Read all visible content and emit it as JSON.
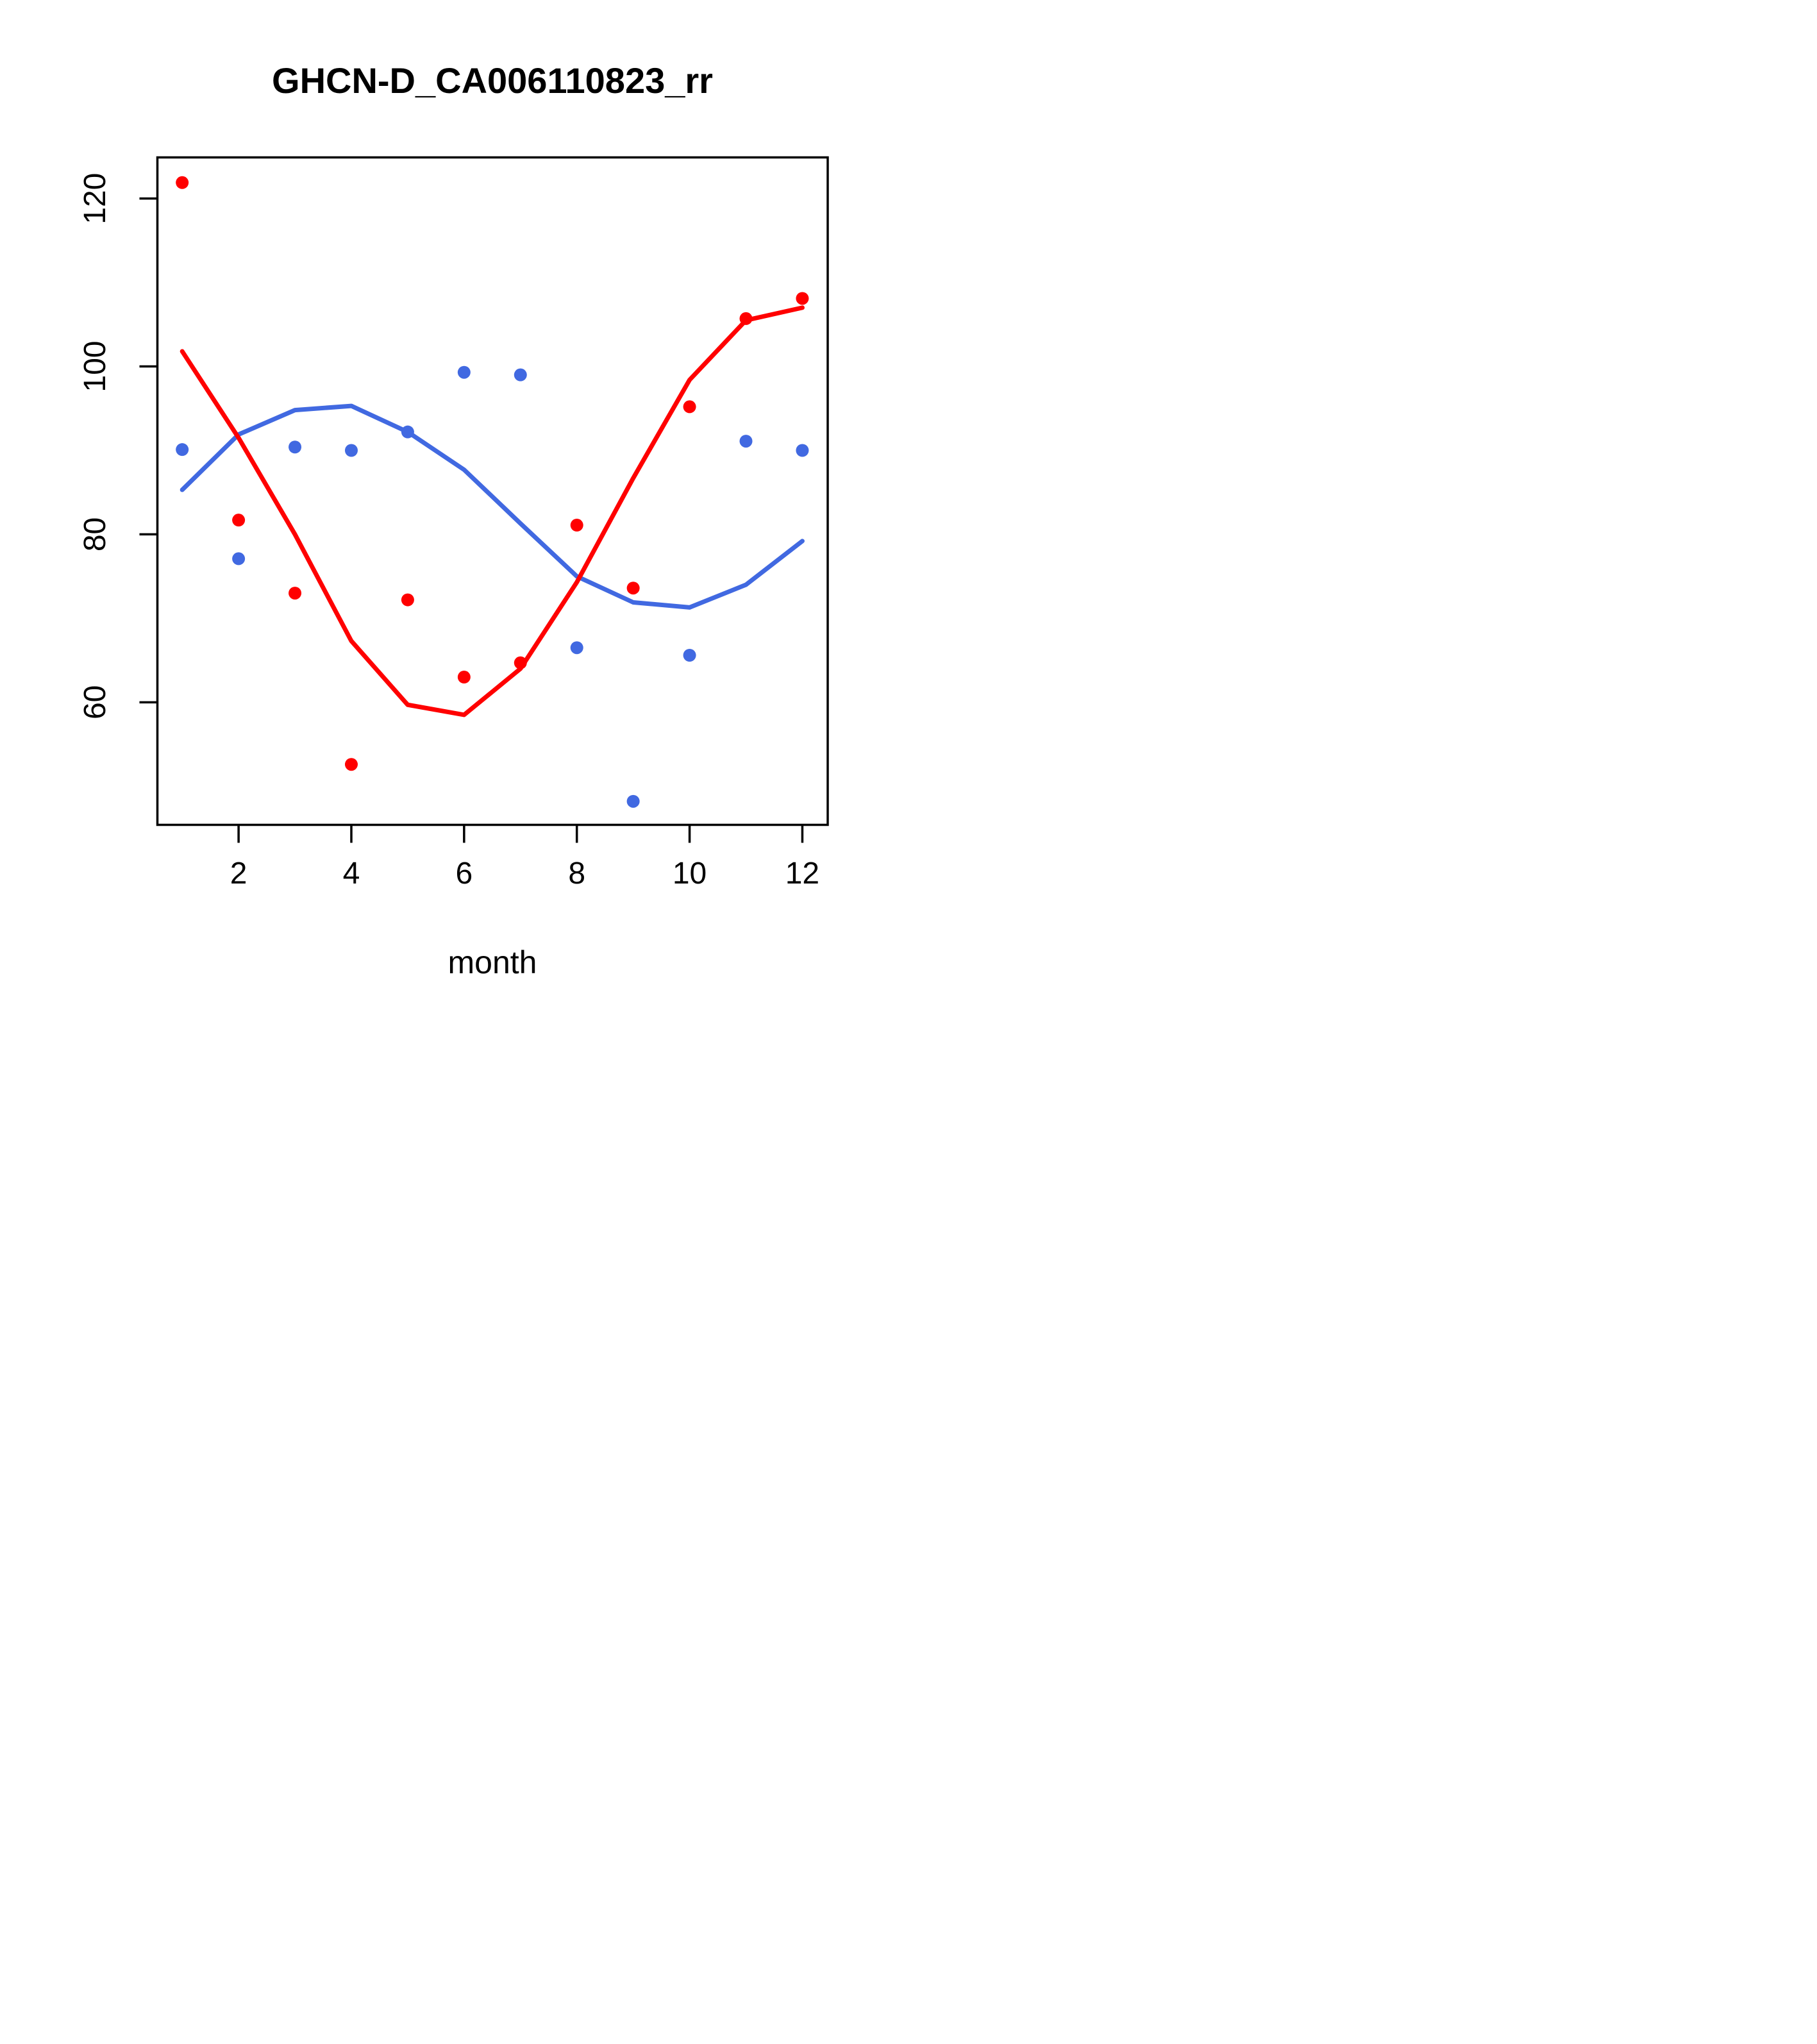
{
  "chart_data": {
    "type": "scatter",
    "title": "GHCN-D_CA006110823_rr",
    "xlabel": "month",
    "ylabel": "",
    "x": [
      1,
      2,
      3,
      4,
      5,
      6,
      7,
      8,
      9,
      10,
      11,
      12
    ],
    "xticks": [
      2,
      4,
      6,
      8,
      10,
      12
    ],
    "yticks": [
      60,
      80,
      100,
      120
    ],
    "xlim": [
      0.56,
      12.45
    ],
    "ylim": [
      45.4,
      124.9
    ],
    "grid": false,
    "legend": "none",
    "colors": {
      "red": "#FF0000",
      "blue": "#4169E1",
      "axis": "#000000",
      "background": "#FFFFFF"
    },
    "series": [
      {
        "name": "blue-smooth-line",
        "type": "line",
        "color": "blue",
        "values": [
          85.3,
          91.9,
          94.8,
          95.3,
          92.2,
          87.7,
          81.3,
          75.0,
          71.9,
          71.3,
          74.0,
          79.2
        ]
      },
      {
        "name": "red-smooth-line",
        "type": "line",
        "color": "red",
        "values": [
          101.8,
          91.5,
          80.0,
          67.3,
          59.7,
          58.5,
          64.0,
          74.3,
          86.7,
          98.4,
          105.5,
          107.0
        ]
      },
      {
        "name": "blue-points",
        "type": "points",
        "color": "blue",
        "values": [
          90.1,
          77.1,
          90.4,
          90.0,
          92.2,
          99.3,
          99.0,
          66.5,
          48.2,
          65.6,
          91.1,
          90.0
        ]
      },
      {
        "name": "red-points",
        "type": "points",
        "color": "red",
        "values": [
          121.9,
          81.7,
          73.0,
          52.6,
          72.2,
          63.0,
          64.7,
          81.1,
          73.6,
          95.2,
          105.7,
          108.1
        ]
      }
    ]
  }
}
